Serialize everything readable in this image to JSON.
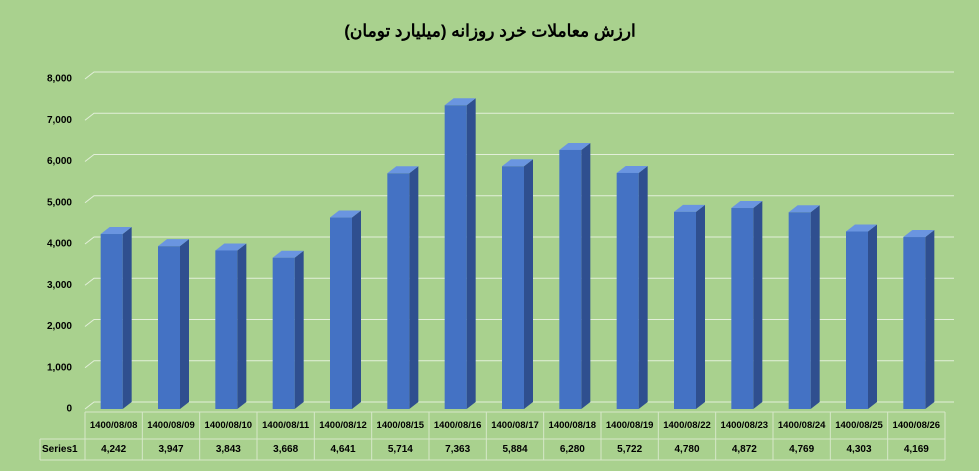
{
  "chart_data": {
    "type": "bar",
    "title": "ارزش معاملات خرد روزانه (میلیارد تومان)",
    "categories": [
      "1400/08/08",
      "1400/08/09",
      "1400/08/10",
      "1400/08/11",
      "1400/08/12",
      "1400/08/15",
      "1400/08/16",
      "1400/08/17",
      "1400/08/18",
      "1400/08/19",
      "1400/08/22",
      "1400/08/23",
      "1400/08/24",
      "1400/08/25",
      "1400/08/26"
    ],
    "series": [
      {
        "name": "Series1",
        "color": "#4472c4",
        "values": [
          4242,
          3947,
          3843,
          3668,
          4641,
          5714,
          7363,
          5884,
          6280,
          5722,
          4780,
          4872,
          4769,
          4303,
          4169
        ],
        "value_labels": [
          "4,242",
          "3,947",
          "3,843",
          "3,668",
          "4,641",
          "5,714",
          "7,363",
          "5,884",
          "6,280",
          "5,722",
          "4,780",
          "4,872",
          "4,769",
          "4,303",
          "4,169"
        ]
      }
    ],
    "ylim": [
      0,
      8000
    ],
    "yticks": [
      0,
      {
        "value": 1000,
        "label": "1,000"
      },
      {
        "value": 2000,
        "label": "2,000"
      },
      {
        "value": 3000,
        "label": "3,000"
      },
      {
        "value": 4000,
        "label": "4,000"
      },
      {
        "value": 5000,
        "label": "5,000"
      },
      {
        "value": 6000,
        "label": "6,000"
      },
      {
        "value": 7000,
        "label": "7,000"
      },
      {
        "value": 8000,
        "label": "8,000"
      }
    ],
    "grid": true
  }
}
